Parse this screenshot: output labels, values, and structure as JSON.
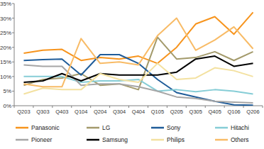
{
  "chart_data": {
    "type": "line",
    "categories": [
      "Q203",
      "Q303",
      "Q403",
      "Q104",
      "Q204",
      "Q304",
      "Q404",
      "Q105",
      "Q205",
      "Q305",
      "Q405",
      "Q106",
      "Q206"
    ],
    "series": [
      {
        "name": "Panasonic",
        "color": "#f7941d",
        "values": [
          18,
          19,
          19.3,
          15.5,
          16.5,
          16,
          17,
          14.5,
          20,
          28,
          30.5,
          24.5,
          32
        ]
      },
      {
        "name": "LG",
        "color": "#a39a6b",
        "values": [
          7,
          9,
          9.5,
          11,
          7,
          7.5,
          5.5,
          23.5,
          16,
          16.5,
          18.5,
          15.5,
          18.5
        ]
      },
      {
        "name": "Sony",
        "color": "#1f5c99",
        "values": [
          15.5,
          15.8,
          16,
          10.5,
          17.5,
          17.5,
          14.5,
          9,
          4.5,
          3,
          1.5,
          0.3,
          0.2
        ]
      },
      {
        "name": "Hitachi",
        "color": "#86cdd6",
        "values": [
          10,
          10,
          10,
          8,
          8.5,
          8.5,
          9,
          5,
          5.5,
          4.8,
          5.5,
          5,
          4
        ]
      },
      {
        "name": "Pioneer",
        "color": "#a6a6a6",
        "values": [
          14,
          13.5,
          13.5,
          7,
          7.5,
          7.5,
          6.5,
          5,
          3,
          2.5,
          1.5,
          1.2,
          1
        ]
      },
      {
        "name": "Samsung",
        "color": "#000000",
        "values": [
          8,
          8.5,
          11,
          8.5,
          11,
          10.5,
          10.5,
          10.5,
          11.5,
          16,
          17,
          13.5,
          14.5
        ]
      },
      {
        "name": "Philips",
        "color": "#f3e1a0",
        "values": [
          4,
          6,
          5.5,
          5.5,
          11,
          9,
          8,
          14.5,
          9,
          9.5,
          13,
          12,
          10
        ]
      },
      {
        "name": "Others",
        "color": "#f8bb66",
        "values": [
          7.5,
          6.5,
          6.5,
          23,
          14.5,
          15,
          14,
          24,
          30,
          19,
          22.5,
          27,
          19.5
        ]
      }
    ],
    "ylim": [
      0,
      35
    ],
    "yticks": [
      {
        "value": 0,
        "label": "0%"
      },
      {
        "value": 5,
        "label": "5%"
      },
      {
        "value": 10,
        "label": "10%"
      },
      {
        "value": 15,
        "label": "15%"
      },
      {
        "value": 20,
        "label": "20%"
      },
      {
        "value": 25,
        "label": "25%"
      },
      {
        "value": 30,
        "label": "30%"
      },
      {
        "value": 35,
        "label": "35%"
      }
    ],
    "grid": false,
    "legend": "bottom"
  }
}
